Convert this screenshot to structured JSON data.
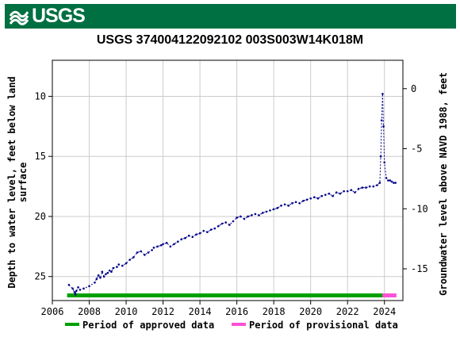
{
  "header": {
    "logo_text": "USGS",
    "banner_color": "#006f41"
  },
  "chart_data": {
    "type": "line",
    "title": "USGS 374004122092102 003S003W14K018M",
    "ylabel_left_line1": "Depth to water level, feet below land",
    "ylabel_left_line2": "surface",
    "ylabel_right": "Groundwater level above NAVD 1988, feet",
    "xlim": [
      2006,
      2025
    ],
    "ylim_left": [
      27.0,
      7.0
    ],
    "ylim_right": [
      -17.64,
      2.36
    ],
    "left_inverted": true,
    "grid": true,
    "x_ticks": [
      "2006",
      "2008",
      "2010",
      "2012",
      "2014",
      "2016",
      "2018",
      "2020",
      "2022",
      "2024"
    ],
    "y_ticks_left": [
      "10",
      "15",
      "20",
      "25"
    ],
    "y_ticks_right": [
      "0",
      "-5",
      "-10",
      "-15"
    ],
    "series": [
      {
        "color": "#00008b",
        "x": [
          2006.9,
          2007.1,
          2007.2,
          2007.25,
          2007.3,
          2007.4,
          2007.5,
          2007.7,
          2008.0,
          2008.3,
          2008.4,
          2008.5,
          2008.6,
          2008.7,
          2008.8,
          2008.9,
          2009.0,
          2009.1,
          2009.2,
          2009.3,
          2009.5,
          2009.6,
          2009.8,
          2010.0,
          2010.2,
          2010.4,
          2010.6,
          2010.8,
          2011.0,
          2011.2,
          2011.4,
          2011.5,
          2011.7,
          2011.9,
          2012.0,
          2012.2,
          2012.4,
          2012.6,
          2012.8,
          2013.0,
          2013.2,
          2013.4,
          2013.6,
          2013.8,
          2014.0,
          2014.2,
          2014.4,
          2014.6,
          2014.8,
          2015.0,
          2015.2,
          2015.4,
          2015.6,
          2015.8,
          2016.0,
          2016.2,
          2016.4,
          2016.6,
          2016.8,
          2017.0,
          2017.2,
          2017.4,
          2017.6,
          2017.8,
          2018.0,
          2018.2,
          2018.4,
          2018.6,
          2018.8,
          2019.0,
          2019.2,
          2019.4,
          2019.6,
          2019.8,
          2020.0,
          2020.2,
          2020.4,
          2020.6,
          2020.8,
          2021.0,
          2021.2,
          2021.4,
          2021.6,
          2021.8,
          2022.0,
          2022.2,
          2022.4,
          2022.6,
          2022.8,
          2023.0,
          2023.2,
          2023.4,
          2023.6,
          2023.75,
          2023.8,
          2023.85,
          2023.9,
          2023.95,
          2024.0,
          2024.1,
          2024.2,
          2024.3,
          2024.4,
          2024.5,
          2024.6
        ],
        "y": [
          25.7,
          26.0,
          26.3,
          26.5,
          26.2,
          25.9,
          26.1,
          26.0,
          25.8,
          25.5,
          25.2,
          24.9,
          25.1,
          24.6,
          25.0,
          24.8,
          24.7,
          24.5,
          24.6,
          24.3,
          24.2,
          24.0,
          24.1,
          23.9,
          23.6,
          23.4,
          23.0,
          22.9,
          23.2,
          23.0,
          22.8,
          22.6,
          22.5,
          22.4,
          22.3,
          22.2,
          22.5,
          22.3,
          22.1,
          21.9,
          21.8,
          21.6,
          21.7,
          21.5,
          21.4,
          21.2,
          21.3,
          21.1,
          21.0,
          20.8,
          20.6,
          20.5,
          20.7,
          20.4,
          20.1,
          20.0,
          20.2,
          20.0,
          19.9,
          19.8,
          19.9,
          19.7,
          19.6,
          19.5,
          19.4,
          19.3,
          19.1,
          19.0,
          19.1,
          18.9,
          18.8,
          18.9,
          18.7,
          18.6,
          18.5,
          18.4,
          18.5,
          18.3,
          18.2,
          18.1,
          18.3,
          18.0,
          18.1,
          17.9,
          17.9,
          17.8,
          18.0,
          17.7,
          17.6,
          17.6,
          17.5,
          17.5,
          17.4,
          17.2,
          15.0,
          12.0,
          9.8,
          12.5,
          15.5,
          16.8,
          17.0,
          17.0,
          17.1,
          17.2,
          17.2
        ]
      }
    ],
    "periods": [
      {
        "name": "Period of approved data",
        "color": "#00a000",
        "start": 2006.8,
        "end": 2023.9
      },
      {
        "name": "Period of provisional data",
        "color": "#ff4fd8",
        "start": 2023.9,
        "end": 2024.65
      }
    ]
  }
}
